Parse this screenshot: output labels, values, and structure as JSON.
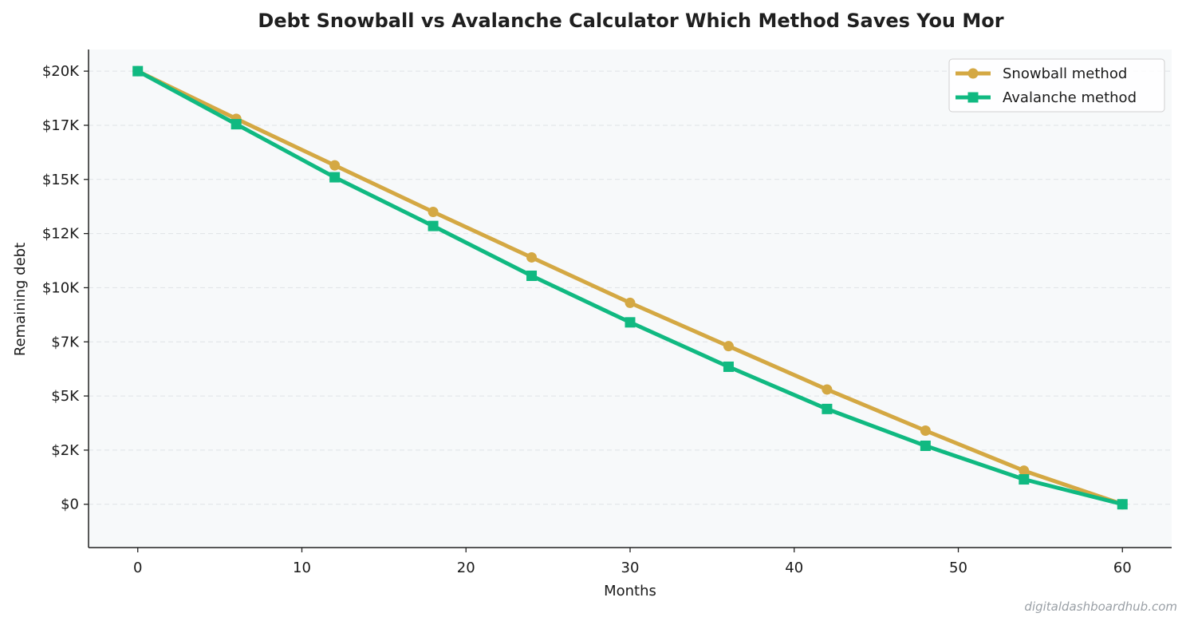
{
  "chart_data": {
    "type": "line",
    "title": "Debt Snowball vs Avalanche Calculator  Which Method Saves You Mor",
    "xlabel": "Months",
    "ylabel": "Remaining debt",
    "xlim": [
      -3,
      63
    ],
    "ylim": [
      -2000,
      21000
    ],
    "x_ticks": [
      0,
      10,
      20,
      30,
      40,
      50,
      60
    ],
    "x_tick_labels": [
      "0",
      "10",
      "20",
      "30",
      "40",
      "50",
      "60"
    ],
    "y_ticks": [
      0,
      2500,
      5000,
      7500,
      10000,
      12500,
      15000,
      17500,
      20000
    ],
    "y_tick_labels": [
      "$0",
      "$2K",
      "$5K",
      "$7K",
      "$10K",
      "$12K",
      "$15K",
      "$17K",
      "$20K"
    ],
    "grid": "horizontal dashed",
    "legend_position": "top-right",
    "x": [
      0,
      6,
      12,
      18,
      24,
      30,
      36,
      42,
      48,
      54,
      60
    ],
    "series": [
      {
        "name": "Snowball method",
        "color": "#D4A843",
        "marker": "circle",
        "values": [
          20000,
          17800,
          15650,
          13500,
          11400,
          9300,
          7300,
          5300,
          3400,
          1550,
          0
        ]
      },
      {
        "name": "Avalanche method",
        "color": "#10B981",
        "marker": "square",
        "values": [
          20000,
          17550,
          15100,
          12850,
          10550,
          8400,
          6350,
          4400,
          2700,
          1150,
          0
        ]
      }
    ],
    "plot_background": "#F7F9FA",
    "watermark": "digitaldashboardhub.com"
  }
}
